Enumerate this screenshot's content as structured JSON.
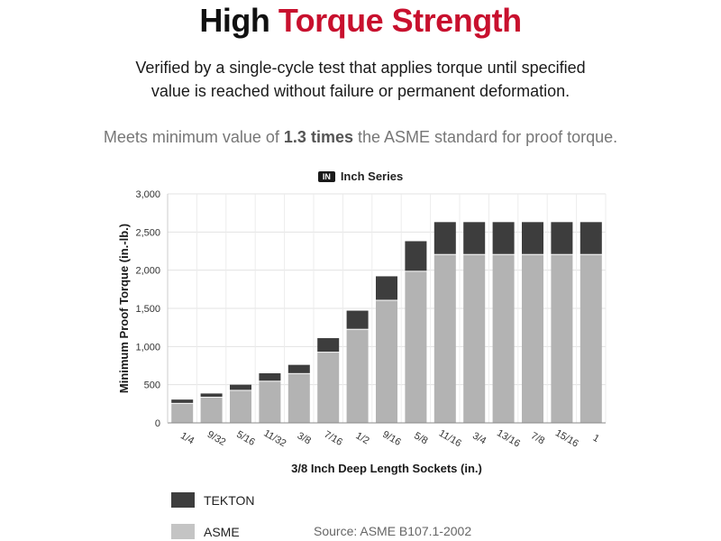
{
  "header": {
    "title_part1": "High",
    "title_part2": "Torque Strength",
    "subtitle_line1": "Verified by a single-cycle test that applies torque until specified",
    "subtitle_line2": "value is reached without failure or permanent deformation.",
    "meets_prefix": "Meets minimum value of",
    "meets_bold": "1.3 times",
    "meets_suffix": "the ASME standard for proof torque."
  },
  "badge": "IN",
  "source": "Source: ASME B107.1-2002",
  "colors": {
    "accent": "#c8102e",
    "tekton": "#3d3d3d",
    "asme": "#b3b3b3",
    "legend_asme": "#c4c4c4"
  },
  "chart_data": {
    "type": "bar",
    "stacked": true,
    "title": "Inch Series",
    "xlabel": "3/8 Inch Deep Length Sockets (in.)",
    "ylabel": "Minimum Proof Torque (in.-lb.)",
    "ylim": [
      0,
      3000
    ],
    "yticks": [
      0,
      500,
      1000,
      1500,
      2000,
      2500,
      3000
    ],
    "ytick_labels": [
      "0",
      "500",
      "1,000",
      "1,500",
      "2,000",
      "2,500",
      "3,000"
    ],
    "grid": true,
    "legend_placement": "bottom-left",
    "categories": [
      "1/4",
      "9/32",
      "5/16",
      "11/32",
      "3/8",
      "7/16",
      "1/2",
      "9/16",
      "5/8",
      "11/16",
      "3/4",
      "13/16",
      "7/8",
      "15/16",
      "1"
    ],
    "series": [
      {
        "name": "ASME",
        "values": [
          250,
          330,
          420,
          540,
          640,
          920,
          1220,
          1600,
          1980,
          2200,
          2200,
          2200,
          2200,
          2200,
          2200
        ]
      },
      {
        "name": "TEKTON",
        "values": [
          55,
          55,
          80,
          110,
          120,
          190,
          250,
          320,
          400,
          430,
          430,
          430,
          430,
          430,
          430
        ]
      }
    ]
  }
}
